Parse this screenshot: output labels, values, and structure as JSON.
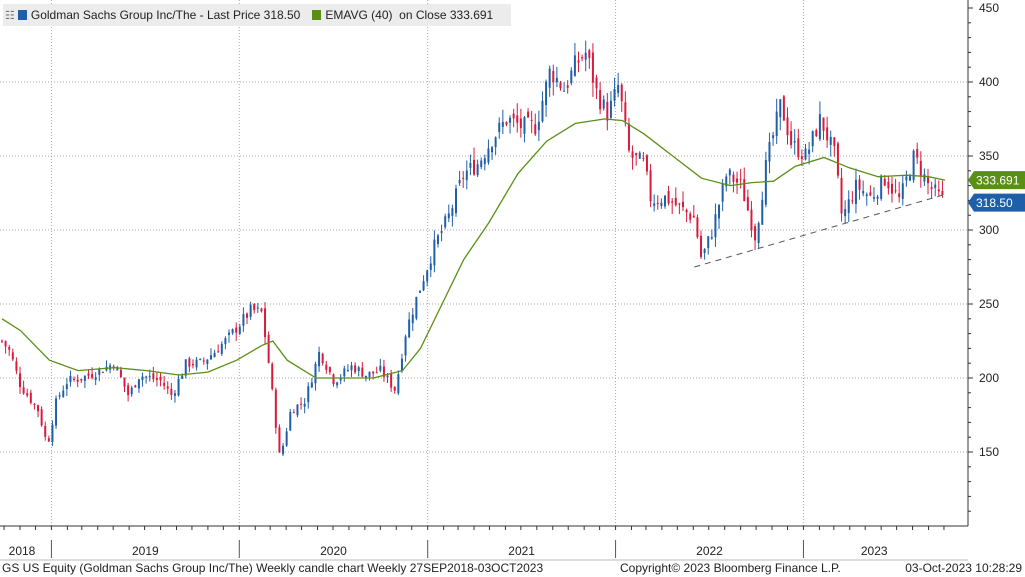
{
  "legend": {
    "series1_label": "Goldman Sachs Group Inc/The - Last Price 318.50",
    "series1_color": "#1f5fa8",
    "series2_label": "EMAVG (40)  on Close 333.691",
    "series2_color": "#5a8f16"
  },
  "footer": {
    "left": "GS US Equity (Goldman Sachs Group Inc/The) Weekly candle chart  Weekly 27SEP2018-03OCT2023",
    "center": "Copyright© 2023 Bloomberg Finance L.P.",
    "right": "03-Oct-2023 10:28:29"
  },
  "chart_data": {
    "type": "candlestick",
    "frequency": "weekly",
    "x_range": [
      "2018-09-27",
      "2023-10-03"
    ],
    "ylim": [
      100,
      450
    ],
    "y_ticks": [
      150,
      200,
      250,
      300,
      350,
      400,
      450
    ],
    "x_labels": [
      "2018",
      "2019",
      "2020",
      "2021",
      "2022",
      "2023"
    ],
    "grid": true,
    "up_color": "#1f5fa8",
    "down_color": "#d81b3c",
    "ema_color": "#5a8f16",
    "last_price_label": "318.50",
    "ema_label": "333.691",
    "last_price": 318.5,
    "ema_last": 333.691,
    "price_path": [
      [
        "2018-09-27",
        225
      ],
      [
        "2018-10-12",
        218
      ],
      [
        "2018-11-02",
        195
      ],
      [
        "2018-12-07",
        178
      ],
      [
        "2018-12-24",
        154
      ],
      [
        "2019-01-11",
        185
      ],
      [
        "2019-02-01",
        198
      ],
      [
        "2019-03-01",
        200
      ],
      [
        "2019-04-05",
        205
      ],
      [
        "2019-05-03",
        210
      ],
      [
        "2019-05-31",
        188
      ],
      [
        "2019-06-21",
        202
      ],
      [
        "2019-08-02",
        198
      ],
      [
        "2019-08-23",
        188
      ],
      [
        "2019-09-20",
        210
      ],
      [
        "2019-10-18",
        210
      ],
      [
        "2019-11-15",
        218
      ],
      [
        "2019-12-13",
        228
      ],
      [
        "2020-01-10",
        240
      ],
      [
        "2020-01-24",
        246
      ],
      [
        "2020-02-14",
        244
      ],
      [
        "2020-02-28",
        208
      ],
      [
        "2020-03-20",
        145
      ],
      [
        "2020-04-10",
        178
      ],
      [
        "2020-05-08",
        185
      ],
      [
        "2020-06-05",
        218
      ],
      [
        "2020-07-03",
        198
      ],
      [
        "2020-08-07",
        208
      ],
      [
        "2020-09-04",
        202
      ],
      [
        "2020-10-02",
        205
      ],
      [
        "2020-10-30",
        192
      ],
      [
        "2020-11-20",
        232
      ],
      [
        "2020-12-18",
        262
      ],
      [
        "2021-01-15",
        290
      ],
      [
        "2021-02-12",
        310
      ],
      [
        "2021-03-12",
        338
      ],
      [
        "2021-04-09",
        345
      ],
      [
        "2021-05-07",
        362
      ],
      [
        "2021-06-04",
        375
      ],
      [
        "2021-07-02",
        370
      ],
      [
        "2021-07-30",
        370
      ],
      [
        "2021-08-27",
        408
      ],
      [
        "2021-09-24",
        395
      ],
      [
        "2021-10-15",
        412
      ],
      [
        "2021-11-05",
        420
      ],
      [
        "2021-11-26",
        392
      ],
      [
        "2021-12-17",
        378
      ],
      [
        "2022-01-07",
        398
      ],
      [
        "2022-01-28",
        350
      ],
      [
        "2022-02-25",
        345
      ],
      [
        "2022-03-11",
        320
      ],
      [
        "2022-04-08",
        322
      ],
      [
        "2022-05-06",
        315
      ],
      [
        "2022-06-03",
        308
      ],
      [
        "2022-06-17",
        280
      ],
      [
        "2022-07-08",
        300
      ],
      [
        "2022-08-05",
        338
      ],
      [
        "2022-09-02",
        330
      ],
      [
        "2022-09-30",
        295
      ],
      [
        "2022-10-21",
        345
      ],
      [
        "2022-11-18",
        385
      ],
      [
        "2022-12-09",
        358
      ],
      [
        "2023-01-06",
        350
      ],
      [
        "2023-02-03",
        375
      ],
      [
        "2023-03-03",
        350
      ],
      [
        "2023-03-17",
        308
      ],
      [
        "2023-04-14",
        330
      ],
      [
        "2023-05-12",
        322
      ],
      [
        "2023-06-09",
        335
      ],
      [
        "2023-07-07",
        320
      ],
      [
        "2023-08-04",
        350
      ],
      [
        "2023-09-01",
        330
      ],
      [
        "2023-10-03",
        318.5
      ]
    ],
    "ema_path": [
      [
        "2018-09-27",
        240
      ],
      [
        "2018-11-02",
        232
      ],
      [
        "2018-12-28",
        212
      ],
      [
        "2019-02-22",
        205
      ],
      [
        "2019-05-03",
        207
      ],
      [
        "2019-07-05",
        205
      ],
      [
        "2019-09-06",
        202
      ],
      [
        "2019-11-01",
        204
      ],
      [
        "2019-12-27",
        212
      ],
      [
        "2020-02-14",
        222
      ],
      [
        "2020-03-06",
        225
      ],
      [
        "2020-04-03",
        212
      ],
      [
        "2020-05-29",
        200
      ],
      [
        "2020-07-24",
        200
      ],
      [
        "2020-09-18",
        200
      ],
      [
        "2020-11-13",
        205
      ],
      [
        "2020-12-18",
        220
      ],
      [
        "2021-01-29",
        250
      ],
      [
        "2021-03-12",
        280
      ],
      [
        "2021-04-30",
        305
      ],
      [
        "2021-06-25",
        338
      ],
      [
        "2021-08-20",
        360
      ],
      [
        "2021-10-15",
        372
      ],
      [
        "2021-12-10",
        375
      ],
      [
        "2022-01-14",
        374
      ],
      [
        "2022-02-25",
        365
      ],
      [
        "2022-04-22",
        350
      ],
      [
        "2022-06-17",
        335
      ],
      [
        "2022-08-12",
        330
      ],
      [
        "2022-09-23",
        332
      ],
      [
        "2022-11-04",
        333
      ],
      [
        "2022-12-16",
        343
      ],
      [
        "2023-02-10",
        349
      ],
      [
        "2023-03-31",
        342
      ],
      [
        "2023-05-26",
        336
      ],
      [
        "2023-07-21",
        337
      ],
      [
        "2023-09-01",
        336
      ],
      [
        "2023-10-03",
        333.7
      ]
    ],
    "trendline": [
      [
        "2022-06-03",
        275
      ],
      [
        "2023-10-03",
        324
      ]
    ]
  }
}
